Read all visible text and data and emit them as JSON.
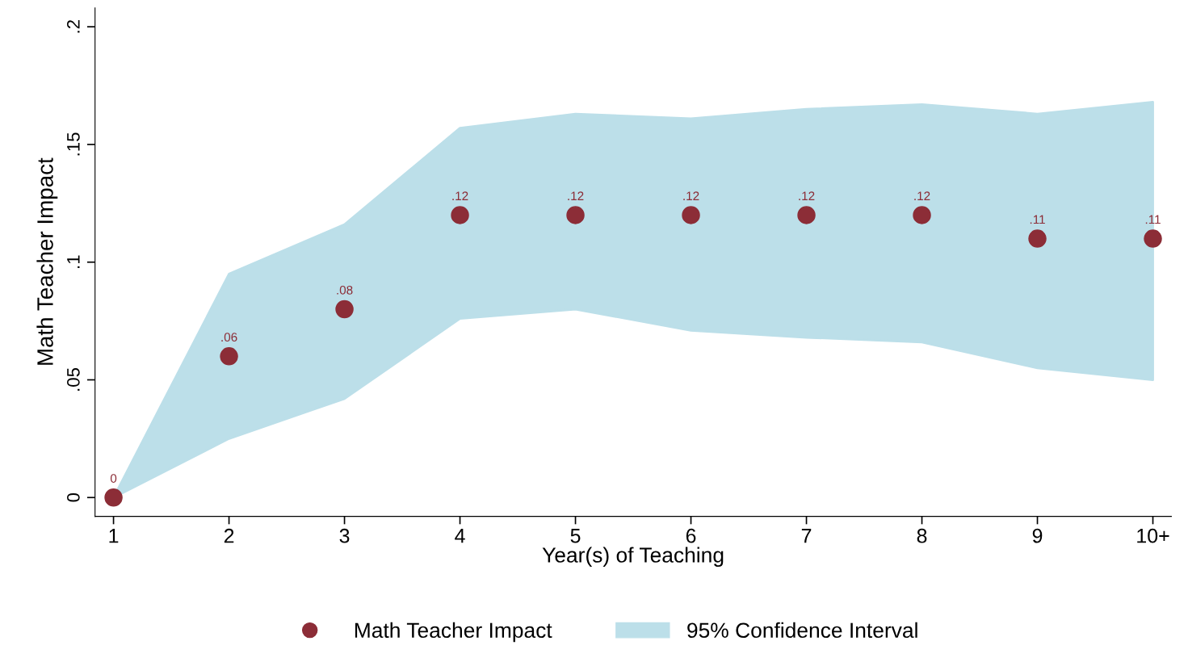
{
  "chart_data": {
    "type": "scatter",
    "xlabel": "Year(s) of Teaching",
    "ylabel": "Math Teacher Impact",
    "categories": [
      "1",
      "2",
      "3",
      "4",
      "5",
      "6",
      "7",
      "8",
      "9",
      "10+"
    ],
    "series": [
      {
        "name": "Math Teacher Impact",
        "color": "#8c2d37",
        "marker": "circle",
        "values": [
          0,
          0.06,
          0.08,
          0.12,
          0.12,
          0.12,
          0.12,
          0.12,
          0.11,
          0.11
        ],
        "value_labels": [
          "0",
          ".06",
          ".08",
          ".12",
          ".12",
          ".12",
          ".12",
          ".12",
          ".11",
          ".11"
        ]
      },
      {
        "name": "95% Confidence Interval",
        "type": "area",
        "color": "#bcdfe9",
        "lower": [
          0,
          0.025,
          0.042,
          0.076,
          0.08,
          0.071,
          0.068,
          0.066,
          0.055,
          0.05
        ],
        "values": [
          null,
          null,
          null,
          null,
          null,
          null,
          null,
          null,
          null,
          null
        ],
        "upper": [
          0,
          0.095,
          0.116,
          0.157,
          0.163,
          0.161,
          0.165,
          0.167,
          0.163,
          0.168
        ]
      }
    ],
    "ylim": [
      -0.008,
      0.208
    ],
    "yticks": [
      0,
      {
        "value": 0.05,
        "label": ".05"
      },
      {
        "value": 0.1,
        "label": ".1"
      },
      {
        "value": 0.15,
        "label": ".15"
      },
      {
        "value": 0.2,
        "label": ".2"
      }
    ],
    "grid": false,
    "legend": "bottom"
  }
}
